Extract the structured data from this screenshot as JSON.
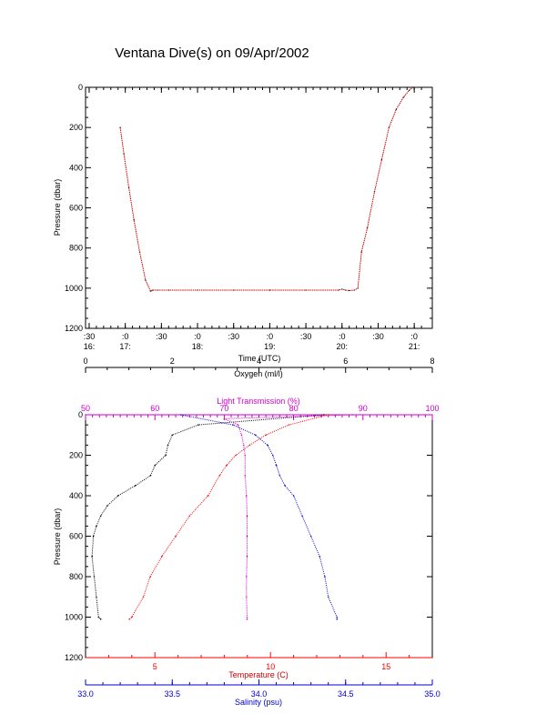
{
  "title": "Ventana Dive(s) on 09/Apr/2002",
  "colors": {
    "depth_trace": "#cc0000",
    "oxygen": "#000000",
    "light_transmission": "#cc00cc",
    "temperature": "#ff0000",
    "salinity": "#0000cc",
    "axes": "#000000"
  },
  "chart_data": [
    {
      "type": "line",
      "name_key": "depth_vs_time",
      "xlabel": "Time (UTC)",
      "ylabel": "Pressure (dbar)",
      "ylim": [
        1200,
        0
      ],
      "y_ticks": [
        "0",
        "200",
        "400",
        "600",
        "800",
        "1000",
        "1200"
      ],
      "x_ticks": [
        {
          "top": ":30",
          "bottom": "16:"
        },
        {
          "top": ":0",
          "bottom": "17:"
        },
        {
          "top": ":30",
          "bottom": ""
        },
        {
          "top": ":0",
          "bottom": "18:"
        },
        {
          "top": ":30",
          "bottom": ""
        },
        {
          "top": ":0",
          "bottom": "19:"
        },
        {
          "top": ":30",
          "bottom": ""
        },
        {
          "top": ":0",
          "bottom": "20:"
        },
        {
          "top": ":30",
          "bottom": ""
        },
        {
          "top": ":0",
          "bottom": "21:"
        }
      ],
      "xlim_hours": [
        16.45,
        21.25
      ],
      "series": [
        {
          "x_hours": [
            16.93,
            16.98,
            17.05,
            17.12,
            17.2,
            17.28,
            17.35,
            17.38,
            17.45,
            17.6,
            18.0,
            18.5,
            19.0,
            19.5,
            19.95,
            20.0,
            20.05,
            20.1,
            20.17,
            20.22,
            20.27,
            20.35,
            20.45,
            20.55,
            20.65,
            20.75,
            20.85,
            20.93,
            20.98
          ],
          "pressure_dbar": [
            200,
            330,
            500,
            660,
            820,
            960,
            1015,
            1010,
            1010,
            1010,
            1010,
            1010,
            1010,
            1010,
            1010,
            1005,
            1010,
            1012,
            1010,
            1000,
            820,
            700,
            520,
            360,
            200,
            110,
            50,
            15,
            0
          ]
        }
      ]
    },
    {
      "type": "line",
      "name_key": "profiles",
      "ylabel": "Pressure (dbar)",
      "ylim": [
        1200,
        0
      ],
      "y_ticks": [
        "0",
        "200",
        "400",
        "600",
        "800",
        "1000",
        "1200"
      ],
      "axes": {
        "oxygen": {
          "label": "Oxygen (ml/l)",
          "range": [
            0,
            8
          ],
          "ticks": [
            "0",
            "2",
            "4",
            "6",
            "8"
          ]
        },
        "light_transmission": {
          "label": "Light Transmission (%)",
          "range": [
            50,
            100
          ],
          "ticks": [
            "50",
            "60",
            "70",
            "80",
            "90",
            "100"
          ]
        },
        "temperature": {
          "label": "Temperature (C)",
          "range": [
            2.0,
            17.0
          ],
          "ticks": [
            "5",
            "10",
            "15"
          ]
        },
        "salinity": {
          "label": "Salinity (psu)",
          "range": [
            33.0,
            35.0
          ],
          "ticks": [
            "33.0",
            "33.5",
            "34.0",
            "34.5",
            "35.0"
          ]
        }
      },
      "series": [
        {
          "key": "oxygen",
          "pressure_dbar": [
            0,
            50,
            100,
            150,
            200,
            250,
            300,
            350,
            400,
            450,
            500,
            550,
            600,
            700,
            800,
            900,
            1000,
            1010
          ],
          "values": [
            5.5,
            2.6,
            2.0,
            1.9,
            1.85,
            1.6,
            1.5,
            1.15,
            0.75,
            0.5,
            0.35,
            0.25,
            0.18,
            0.15,
            0.2,
            0.25,
            0.3,
            0.35
          ]
        },
        {
          "key": "light_transmission",
          "pressure_dbar": [
            0,
            20,
            50,
            100,
            150,
            200,
            300,
            400,
            500,
            600,
            700,
            800,
            900,
            1000,
            1010
          ],
          "values": [
            88.5,
            70.0,
            72.0,
            72.5,
            72.8,
            73.0,
            73.0,
            73.2,
            73.3,
            73.3,
            73.3,
            73.2,
            73.2,
            73.3,
            73.3
          ]
        },
        {
          "key": "temperature",
          "pressure_dbar": [
            0,
            50,
            100,
            150,
            200,
            250,
            300,
            400,
            500,
            600,
            700,
            800,
            900,
            1000,
            1010
          ],
          "values": [
            12.5,
            10.8,
            9.8,
            9.1,
            8.5,
            8.1,
            7.8,
            7.3,
            6.5,
            5.9,
            5.3,
            4.8,
            4.5,
            4.0,
            3.9
          ]
        },
        {
          "key": "salinity",
          "pressure_dbar": [
            0,
            50,
            100,
            150,
            200,
            250,
            300,
            350,
            400,
            500,
            600,
            700,
            800,
            900,
            1000,
            1010
          ],
          "values": [
            33.55,
            33.85,
            33.98,
            34.05,
            34.08,
            34.1,
            34.12,
            34.15,
            34.2,
            34.25,
            34.3,
            34.35,
            34.38,
            34.4,
            34.45,
            34.45
          ]
        }
      ]
    }
  ]
}
